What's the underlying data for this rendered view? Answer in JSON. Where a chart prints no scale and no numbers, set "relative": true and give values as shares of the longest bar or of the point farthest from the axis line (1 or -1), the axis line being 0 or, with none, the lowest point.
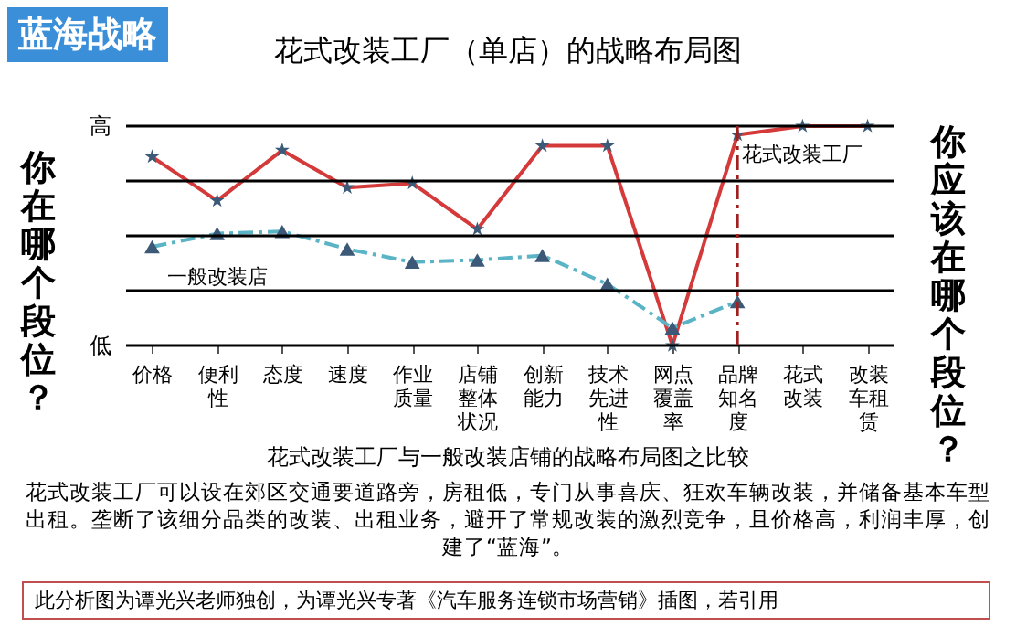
{
  "chart_data": {
    "type": "line",
    "title": "花式改装工厂（单店）的战略布局图",
    "relative": true,
    "legend": false,
    "categories": [
      "价格",
      "便利性",
      "态度",
      "速度",
      "作业质量",
      "店铺整体状况",
      "创新能力",
      "技术先进性",
      "网点覆盖率",
      "品牌知名度",
      "花式改装",
      "改装车租赁"
    ],
    "series": [
      {
        "name": "花式改装工厂",
        "color": "#d43a3a",
        "marker": "star",
        "line_style": "solid",
        "values": [
          0.86,
          0.66,
          0.89,
          0.72,
          0.74,
          0.53,
          0.91,
          0.91,
          0,
          0.96,
          1,
          1
        ]
      },
      {
        "name": "一般改装店",
        "color": "#5ab4c6",
        "marker": "triangle",
        "line_style": "dashed",
        "values": [
          0.45,
          0.51,
          0.52,
          0.44,
          0.38,
          0.39,
          0.41,
          0.28,
          0.08,
          0.2,
          null,
          null
        ]
      }
    ],
    "ref_lines": [
      {
        "axis": "y",
        "value": 1,
        "label": "高",
        "color": "#000000",
        "line_style": "solid"
      },
      {
        "axis": "y",
        "value": 0.75,
        "color": "#000000",
        "line_style": "solid"
      },
      {
        "axis": "y",
        "value": 0.5,
        "color": "#000000",
        "line_style": "solid"
      },
      {
        "axis": "y",
        "value": 0.25,
        "color": "#000000",
        "line_style": "solid"
      },
      {
        "axis": "y",
        "value": 0,
        "label": "低",
        "color": "#000000",
        "line_style": "solid"
      },
      {
        "axis": "x",
        "value": "品牌知名度",
        "color": "#a02020",
        "line_style": "dashed"
      }
    ],
    "annotations": [
      "蓝海战略",
      "你在哪个段位？",
      "你应该在哪个段位？",
      "花式改装工厂与一般改装店铺的战略布局图之比较",
      "花式改装工厂可以设在郊区交通要道路旁，房租低，专门从事喜庆、狂欢车辆改装，并储备基本车型出租。垄断了该细分品类的改装、出租业务，避开了常规改装的激烈竞争，且价格高，利润丰厚，创建了“蓝海”。",
      "此分析图为谭光兴老师独创，为谭光兴专著《汽车服务连锁市场营销》插图，若引用"
    ]
  }
}
